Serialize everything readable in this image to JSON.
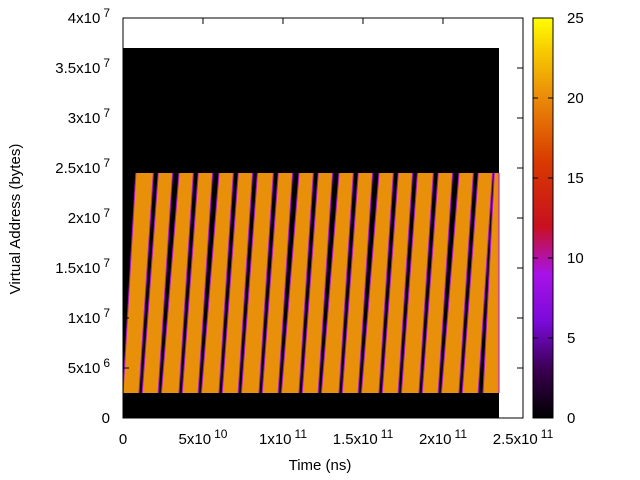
{
  "chart_data": {
    "type": "heatmap",
    "title": "",
    "xlabel": "Time (ns)",
    "ylabel": "Virtual Address (bytes)",
    "xlim": [
      0,
      250000000000
    ],
    "ylim": [
      0,
      40000000
    ],
    "data_extent": {
      "x": [
        0,
        235000000000
      ],
      "y": [
        0,
        37000000
      ]
    },
    "x_ticks": [
      {
        "value": 0,
        "mant": "0",
        "exp": ""
      },
      {
        "value": 50000000000,
        "mant": "5x10",
        "exp": "10"
      },
      {
        "value": 100000000000,
        "mant": "1x10",
        "exp": "11"
      },
      {
        "value": 150000000000,
        "mant": "1.5x10",
        "exp": "11"
      },
      {
        "value": 200000000000,
        "mant": "2x10",
        "exp": "11"
      },
      {
        "value": 250000000000,
        "mant": "2.5x10",
        "exp": "11"
      }
    ],
    "y_ticks": [
      {
        "value": 0,
        "mant": "0",
        "exp": ""
      },
      {
        "value": 5000000,
        "mant": "5x10",
        "exp": "6"
      },
      {
        "value": 10000000,
        "mant": "1x10",
        "exp": "7"
      },
      {
        "value": 15000000,
        "mant": "1.5x10",
        "exp": "7"
      },
      {
        "value": 20000000,
        "mant": "2x10",
        "exp": "7"
      },
      {
        "value": 25000000,
        "mant": "2.5x10",
        "exp": "7"
      },
      {
        "value": 30000000,
        "mant": "3x10",
        "exp": "7"
      },
      {
        "value": 35000000,
        "mant": "3.5x10",
        "exp": "7"
      },
      {
        "value": 40000000,
        "mant": "4x10",
        "exp": "7"
      }
    ],
    "background_color": "#000000",
    "band": {
      "value": 20,
      "color": "#e8900a",
      "y_range": [
        2500000,
        24500000
      ],
      "edge_color": "#b010e0",
      "cycles": [
        {
          "x_start_bottom": 0,
          "x_start_top": 8000000000,
          "x_end_bottom": 10000000000,
          "x_end_top": 19000000000
        },
        {
          "x_start_bottom": 12000000000,
          "x_start_top": 22000000000,
          "x_end_bottom": 22000000000,
          "x_end_top": 31000000000
        },
        {
          "x_start_bottom": 24000000000,
          "x_start_top": 35000000000,
          "x_end_bottom": 35000000000,
          "x_end_top": 44000000000
        },
        {
          "x_start_bottom": 37000000000,
          "x_start_top": 47000000000,
          "x_end_bottom": 47000000000,
          "x_end_top": 56000000000
        },
        {
          "x_start_bottom": 49000000000,
          "x_start_top": 60000000000,
          "x_end_bottom": 60000000000,
          "x_end_top": 69000000000
        },
        {
          "x_start_bottom": 62000000000,
          "x_start_top": 72000000000,
          "x_end_bottom": 72000000000,
          "x_end_top": 81000000000
        },
        {
          "x_start_bottom": 74000000000,
          "x_start_top": 84000000000,
          "x_end_bottom": 85000000000,
          "x_end_top": 94000000000
        },
        {
          "x_start_bottom": 87000000000,
          "x_start_top": 97000000000,
          "x_end_bottom": 97000000000,
          "x_end_top": 106000000000
        },
        {
          "x_start_bottom": 99000000000,
          "x_start_top": 110000000000,
          "x_end_bottom": 110000000000,
          "x_end_top": 119000000000
        },
        {
          "x_start_bottom": 112000000000,
          "x_start_top": 122000000000,
          "x_end_bottom": 122000000000,
          "x_end_top": 131000000000
        },
        {
          "x_start_bottom": 124000000000,
          "x_start_top": 135000000000,
          "x_end_bottom": 135000000000,
          "x_end_top": 144000000000
        },
        {
          "x_start_bottom": 137000000000,
          "x_start_top": 147000000000,
          "x_end_bottom": 147000000000,
          "x_end_top": 156000000000
        },
        {
          "x_start_bottom": 149000000000,
          "x_start_top": 160000000000,
          "x_end_bottom": 160000000000,
          "x_end_top": 169000000000
        },
        {
          "x_start_bottom": 162000000000,
          "x_start_top": 172000000000,
          "x_end_bottom": 172000000000,
          "x_end_top": 181000000000
        },
        {
          "x_start_bottom": 174000000000,
          "x_start_top": 184000000000,
          "x_end_bottom": 185000000000,
          "x_end_top": 194000000000
        },
        {
          "x_start_bottom": 187000000000,
          "x_start_top": 197000000000,
          "x_end_bottom": 197000000000,
          "x_end_top": 206000000000
        },
        {
          "x_start_bottom": 199000000000,
          "x_start_top": 210000000000,
          "x_end_bottom": 210000000000,
          "x_end_top": 219000000000
        },
        {
          "x_start_bottom": 212000000000,
          "x_start_top": 222000000000,
          "x_end_bottom": 222000000000,
          "x_end_top": 231000000000
        },
        {
          "x_start_bottom": 225000000000,
          "x_start_top": 232000000000,
          "x_end_bottom": 235000000000,
          "x_end_top": 235000000000
        }
      ]
    },
    "colorbar": {
      "range": [
        0,
        25
      ],
      "ticks": [
        0,
        5,
        10,
        15,
        20,
        25
      ],
      "stops": [
        {
          "value": 0,
          "color": "#000000"
        },
        {
          "value": 3,
          "color": "#3a0050"
        },
        {
          "value": 6,
          "color": "#7a0ad8"
        },
        {
          "value": 9,
          "color": "#a812e8"
        },
        {
          "value": 12,
          "color": "#c8101e"
        },
        {
          "value": 16,
          "color": "#d83a00"
        },
        {
          "value": 20,
          "color": "#ea8a08"
        },
        {
          "value": 23,
          "color": "#f8cc00"
        },
        {
          "value": 25,
          "color": "#ffff00"
        }
      ]
    },
    "legend": "colorbar-right",
    "grid": false
  }
}
